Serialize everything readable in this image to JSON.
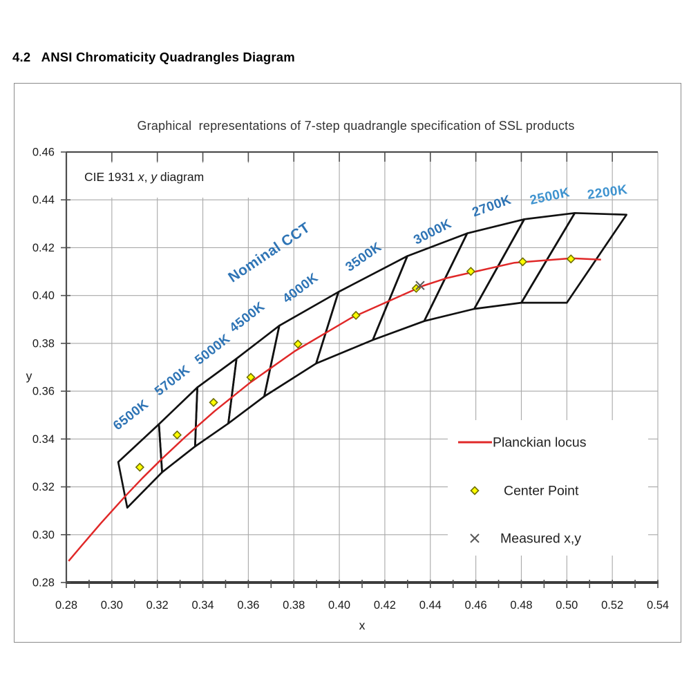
{
  "page": {
    "heading": "4.2   ANSI Chromaticity Quadrangles Diagram"
  },
  "chart_data": {
    "type": "scatter",
    "title": "Graphical  representations of 7-step quadrangle specification of SSL products",
    "xlabel": "x",
    "ylabel": "y",
    "xlim": [
      0.28,
      0.54
    ],
    "ylim": [
      0.28,
      0.46
    ],
    "xticks": [
      "0.28",
      "0.30",
      "0.32",
      "0.34",
      "0.36",
      "0.38",
      "0.40",
      "0.42",
      "0.44",
      "0.46",
      "0.48",
      "0.50",
      "0.52",
      "0.54"
    ],
    "yticks": [
      "0.46",
      "0.44",
      "0.42",
      "0.40",
      "0.38",
      "0.36",
      "0.34",
      "0.32",
      "0.30",
      "0.28"
    ],
    "grid": true,
    "legend_position": "inside lower right",
    "cie_label_parts": [
      {
        "text": "CIE 1931 ",
        "italic": false
      },
      {
        "text": "x",
        "italic": true
      },
      {
        "text": ", ",
        "italic": false
      },
      {
        "text": "y",
        "italic": true
      },
      {
        "text": " diagram",
        "italic": false
      }
    ],
    "nominal_cct_label": {
      "text": "Nominal CCT",
      "x": 0.3703,
      "y": 0.4164,
      "rotation": -34
    },
    "colors": {
      "grid": "#a8a8a8",
      "axis": "#4d4d4d",
      "bottom_axis": "#3c3c3c",
      "quadrangle": "#111111",
      "locus": "#e02828",
      "cct_label": "#2e74b5",
      "cct_label_light": "#3f93cf",
      "center_fill": "#ffff00",
      "center_stroke": "#6e6e00",
      "measured": "#595959",
      "title": "#333333",
      "text": "#1a1a1a"
    },
    "quadrangles": [
      {
        "label": "6500K",
        "label_pos": [
          0.3095,
          0.3487
        ],
        "label_rotation": -38,
        "light": false,
        "center": [
          0.3123,
          0.3282
        ],
        "corners": [
          [
            0.3028,
            0.3304
          ],
          [
            0.3207,
            0.3462
          ],
          [
            0.3221,
            0.3261
          ],
          [
            0.3068,
            0.3113
          ]
        ]
      },
      {
        "label": "5700K",
        "label_pos": [
          0.3277,
          0.3631
        ],
        "label_rotation": -38,
        "light": false,
        "center": [
          0.3287,
          0.3417
        ],
        "corners": [
          [
            0.3207,
            0.3462
          ],
          [
            0.3376,
            0.3616
          ],
          [
            0.3366,
            0.3369
          ],
          [
            0.3221,
            0.3261
          ]
        ]
      },
      {
        "label": "5000K",
        "label_pos": [
          0.3454,
          0.3761
        ],
        "label_rotation": -38,
        "light": false,
        "center": [
          0.3447,
          0.3553
        ],
        "corners": [
          [
            0.3376,
            0.3616
          ],
          [
            0.3548,
            0.3736
          ],
          [
            0.3512,
            0.3465
          ],
          [
            0.3366,
            0.3369
          ]
        ]
      },
      {
        "label": "4500K",
        "label_pos": [
          0.3606,
          0.3896
        ],
        "label_rotation": -38,
        "light": false,
        "center": [
          0.3611,
          0.3658
        ],
        "corners": [
          [
            0.3548,
            0.3736
          ],
          [
            0.3736,
            0.3874
          ],
          [
            0.367,
            0.3578
          ],
          [
            0.3512,
            0.3465
          ]
        ]
      },
      {
        "label": "4000K",
        "label_pos": [
          0.384,
          0.4017
        ],
        "label_rotation": -37,
        "light": false,
        "center": [
          0.3818,
          0.3797
        ],
        "corners": [
          [
            0.3736,
            0.3874
          ],
          [
            0.3996,
            0.4015
          ],
          [
            0.3898,
            0.3716
          ],
          [
            0.367,
            0.3578
          ]
        ]
      },
      {
        "label": "3500K",
        "label_pos": [
          0.4117,
          0.4147
        ],
        "label_rotation": -35,
        "light": false,
        "center": [
          0.4073,
          0.3917
        ],
        "corners": [
          [
            0.3996,
            0.4015
          ],
          [
            0.4299,
            0.4165
          ],
          [
            0.4147,
            0.3814
          ],
          [
            0.3898,
            0.3716
          ]
        ]
      },
      {
        "label": "3000K",
        "label_pos": [
          0.4418,
          0.4251
        ],
        "label_rotation": -27,
        "light": false,
        "center": [
          0.4338,
          0.403
        ],
        "corners": [
          [
            0.4299,
            0.4165
          ],
          [
            0.4562,
            0.426
          ],
          [
            0.4373,
            0.3893
          ],
          [
            0.4147,
            0.3814
          ]
        ]
      },
      {
        "label": "2700K",
        "label_pos": [
          0.4676,
          0.4358
        ],
        "label_rotation": -20,
        "light": false,
        "center": [
          0.4578,
          0.4101
        ],
        "corners": [
          [
            0.4562,
            0.426
          ],
          [
            0.4813,
            0.4319
          ],
          [
            0.4593,
            0.3944
          ],
          [
            0.4373,
            0.3893
          ]
        ]
      },
      {
        "label": "2500K",
        "label_pos": [
          0.4929,
          0.4398
        ],
        "label_rotation": -12,
        "light": true,
        "center": [
          0.4806,
          0.4141
        ],
        "corners": [
          [
            0.4813,
            0.4319
          ],
          [
            0.5035,
            0.4345
          ],
          [
            0.48,
            0.397
          ],
          [
            0.4593,
            0.3944
          ]
        ]
      },
      {
        "label": "2200K",
        "label_pos": [
          0.5181,
          0.4415
        ],
        "label_rotation": -8,
        "light": true,
        "center": [
          0.5018,
          0.4153
        ],
        "corners": [
          [
            0.5035,
            0.4345
          ],
          [
            0.5262,
            0.4338
          ],
          [
            0.5,
            0.397
          ],
          [
            0.48,
            0.397
          ]
        ]
      }
    ],
    "planckian_locus": [
      [
        0.281,
        0.289
      ],
      [
        0.2869,
        0.2956
      ],
      [
        0.2952,
        0.3048
      ],
      [
        0.3064,
        0.3166
      ],
      [
        0.3135,
        0.3237
      ],
      [
        0.3221,
        0.3318
      ],
      [
        0.3324,
        0.341
      ],
      [
        0.3451,
        0.3516
      ],
      [
        0.3608,
        0.3636
      ],
      [
        0.3805,
        0.3768
      ],
      [
        0.4053,
        0.3907
      ],
      [
        0.4369,
        0.4041
      ],
      [
        0.4476,
        0.4074
      ],
      [
        0.477,
        0.4137
      ],
      [
        0.502,
        0.4156
      ],
      [
        0.515,
        0.415
      ]
    ],
    "measured_point": [
      0.4355,
      0.4042
    ],
    "legend": [
      {
        "marker": "line",
        "label": "Planckian locus"
      },
      {
        "marker": "diamond",
        "label": "Center Point"
      },
      {
        "marker": "x-mark",
        "label": "Measured x,y"
      }
    ]
  }
}
